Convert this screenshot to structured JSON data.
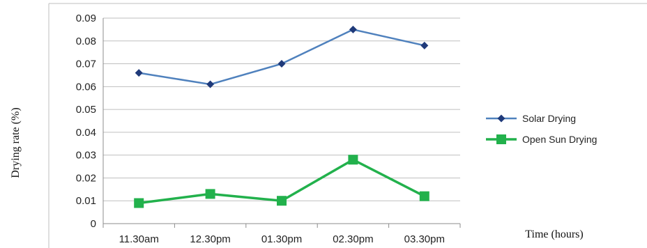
{
  "chart_data": {
    "type": "line",
    "title": "",
    "xlabel": "Time (hours)",
    "ylabel": "Drying rate (%)",
    "categories": [
      "11.30am",
      "12.30pm",
      "01.30pm",
      "02.30pm",
      "03.30pm"
    ],
    "ylim": [
      0,
      0.09
    ],
    "yticks": [
      "0",
      "0.01",
      "0.02",
      "0.03",
      "0.04",
      "0.05",
      "0.06",
      "0.07",
      "0.08",
      "0.09"
    ],
    "grid": true,
    "legend_position": "right",
    "series": [
      {
        "name": "Solar Drying",
        "values": [
          0.066,
          0.061,
          0.07,
          0.085,
          0.078
        ],
        "color": "#4f81bd",
        "marker_color": "#1f3a7a",
        "marker": "diamond"
      },
      {
        "name": "Open Sun Drying",
        "values": [
          0.009,
          0.013,
          0.01,
          0.028,
          0.012
        ],
        "color": "#22b14c",
        "marker_color": "#22b14c",
        "marker": "square"
      }
    ]
  }
}
